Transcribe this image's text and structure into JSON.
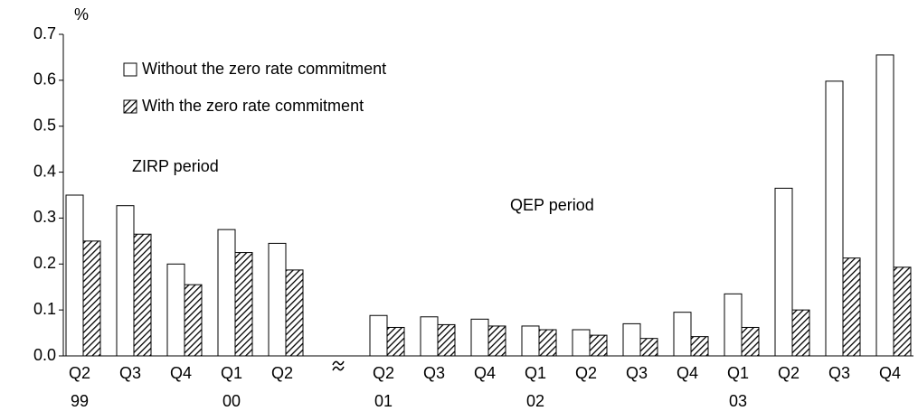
{
  "chart_data": {
    "type": "bar",
    "y_axis_label": "%",
    "categories": [
      "Q2",
      "Q3",
      "Q4",
      "Q1",
      "Q2",
      null,
      "Q2",
      "Q3",
      "Q4",
      "Q1",
      "Q2",
      "Q3",
      "Q4",
      "Q1",
      "Q2",
      "Q3",
      "Q4"
    ],
    "group_labels": [
      "99",
      null,
      null,
      "00",
      null,
      null,
      "01",
      null,
      null,
      "02",
      null,
      null,
      null,
      "03",
      null,
      null,
      null
    ],
    "series": [
      {
        "name": "Without the zero rate commitment",
        "color": "#ffffff",
        "values": [
          0.35,
          0.327,
          0.2,
          0.275,
          0.245,
          null,
          0.088,
          0.085,
          0.08,
          0.065,
          0.057,
          0.07,
          0.095,
          0.135,
          0.365,
          0.598,
          0.655
        ]
      },
      {
        "name": "With the zero rate commitment",
        "color": "#000000",
        "pattern": "hatch",
        "values": [
          0.25,
          0.265,
          0.155,
          0.225,
          0.187,
          null,
          0.062,
          0.068,
          0.065,
          0.057,
          0.045,
          0.038,
          0.042,
          0.062,
          0.1,
          0.213,
          0.193
        ]
      }
    ],
    "annotations": [
      "ZIRP period",
      "QEP period"
    ],
    "ylim": [
      0,
      0.7
    ],
    "yticks": [
      {
        "value": 0,
        "label": "0.0"
      },
      0.1,
      0.2,
      0.3,
      0.4,
      0.5,
      0.6,
      0.7
    ],
    "legend": "upper left"
  }
}
